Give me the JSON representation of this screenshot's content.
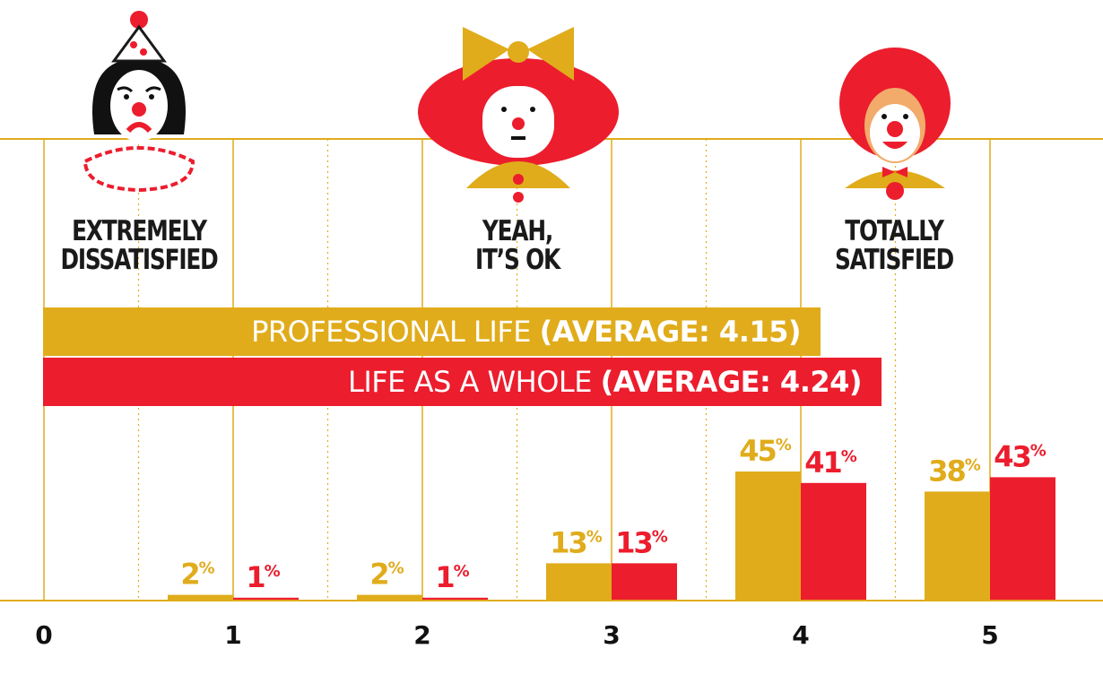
{
  "chart_data": {
    "type": "bar",
    "categories": [
      "0",
      "1",
      "2",
      "3",
      "4",
      "5"
    ],
    "ylim": [
      0,
      50
    ],
    "value_suffix": "%",
    "series": [
      {
        "name": "PROFESSIONAL LIFE",
        "average_label": "(AVERAGE: 4.15)",
        "color": "#e0ac1b",
        "values": [
          null,
          2,
          2,
          13,
          45,
          38
        ]
      },
      {
        "name": "LIFE AS A WHOLE",
        "average_label": "(AVERAGE: 4.24)",
        "color": "#ec1d2d",
        "values": [
          null,
          1,
          1,
          13,
          41,
          43
        ]
      }
    ],
    "scale_labels": [
      {
        "text": "EXTREMELY\nDISSATISFIED",
        "icon": "sad-clown-icon"
      },
      {
        "text": "YEAH,\nIT’S OK",
        "icon": "neutral-clown-icon"
      },
      {
        "text": "TOTALLY\nSATISFIED",
        "icon": "happy-clown-icon"
      }
    ],
    "grid": true,
    "legend": "top"
  }
}
